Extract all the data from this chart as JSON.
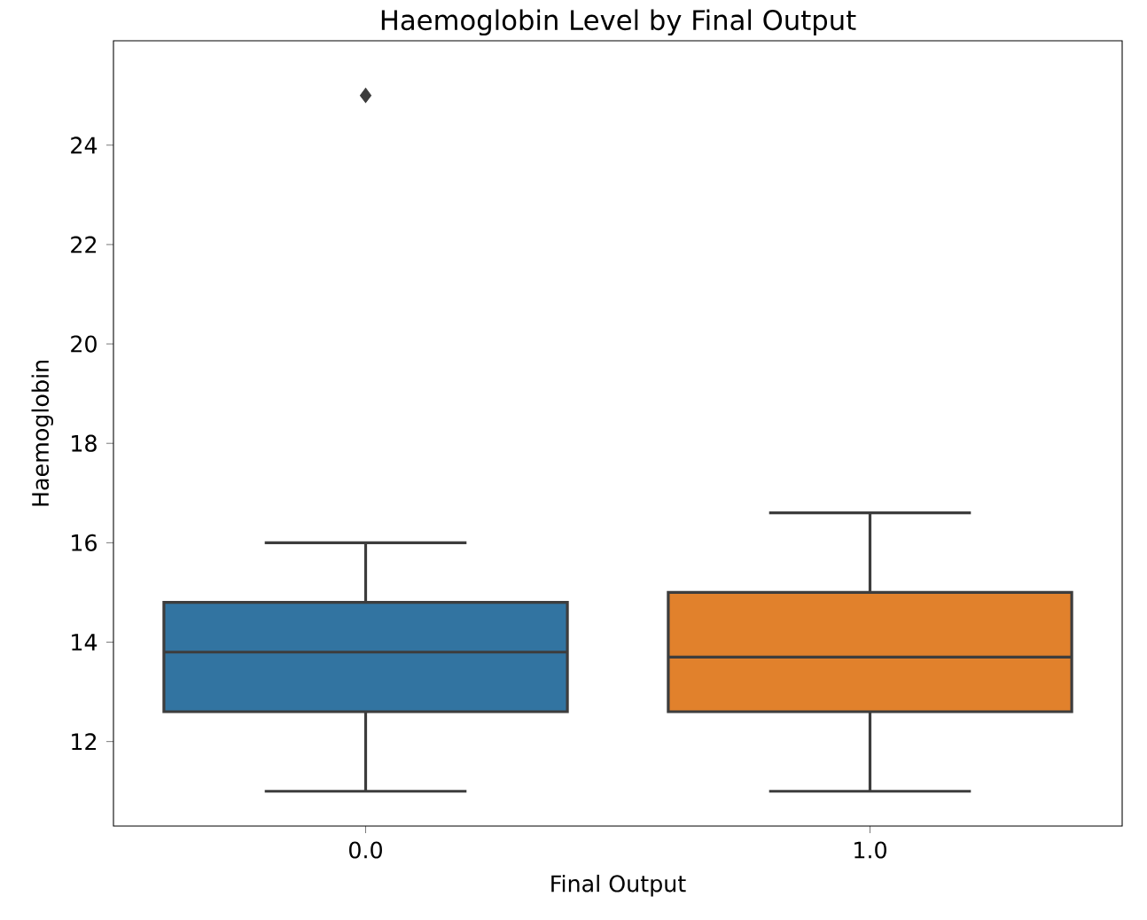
{
  "chart_data": {
    "type": "box",
    "title": "Haemoglobin Level by Final Output",
    "xlabel": "Final Output",
    "ylabel": "Haemoglobin",
    "categories": [
      "0.0",
      "1.0"
    ],
    "colors": [
      "#3274a1",
      "#e1812c"
    ],
    "boxes": [
      {
        "low": 11,
        "q1": 12.6,
        "median": 13.8,
        "q3": 14.8,
        "high": 16,
        "outliers": [
          25
        ]
      },
      {
        "low": 11,
        "q1": 12.6,
        "median": 13.7,
        "q3": 15,
        "high": 16.6
      }
    ],
    "ylim": [
      10.3,
      26.1
    ],
    "yticks": [
      12,
      14,
      16,
      18,
      20,
      22,
      24
    ],
    "marker": "diamond",
    "grid": false
  }
}
